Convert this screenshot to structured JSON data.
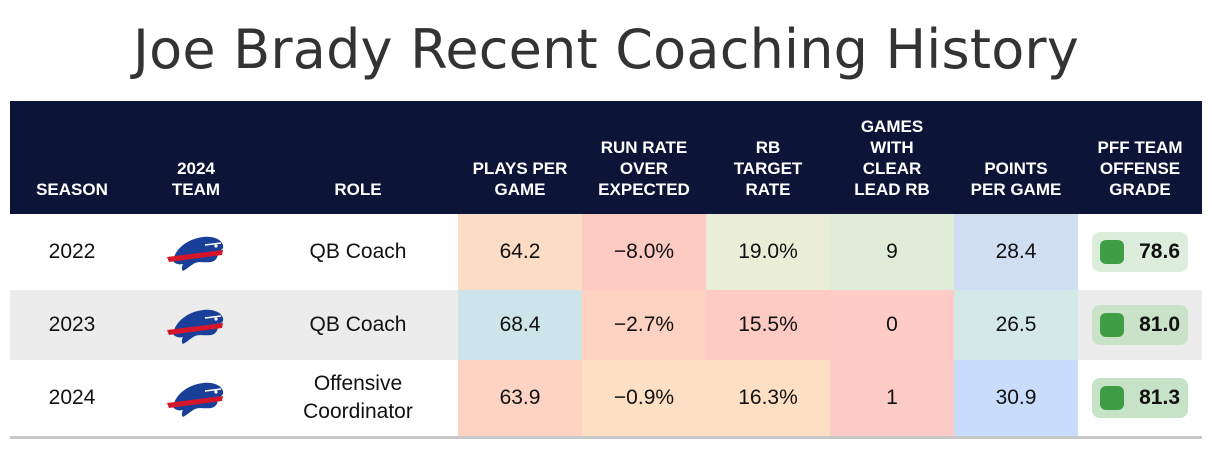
{
  "title": "Joe Brady Recent Coaching History",
  "headers": {
    "season": "SEASON",
    "team": "2024\nTEAM",
    "role": "ROLE",
    "plays_per_game": "PLAYS PER\nGAME",
    "run_rate_over_expected": "RUN RATE\nOVER\nEXPECTED",
    "rb_target_rate": "RB\nTARGET\nRATE",
    "games_with_clear_lead_rb": "GAMES\nWITH\nCLEAR\nLEAD RB",
    "points_per_game": "POINTS\nPER GAME",
    "pff_team_offense_grade": "PFF TEAM\nOFFENSE\nGRADE"
  },
  "team_logo_icon": "buffalo-bills-logo-icon",
  "colors": {
    "header_bg": "#0c1537",
    "grade_dot": "#3f9e45"
  },
  "rows": [
    {
      "season": "2022",
      "role": "QB Coach",
      "plays_per_game": "64.2",
      "run_rate_over_expected": "−8.0%",
      "rb_target_rate": "19.0%",
      "games_with_clear_lead_rb": "9",
      "points_per_game": "28.4",
      "pff_team_offense_grade": "78.6",
      "cell_colors": [
        "#fddcc6",
        "#fdcac4",
        "#eaeed6",
        "#dfedd8",
        "#cfdff1",
        "#dceedb"
      ]
    },
    {
      "season": "2023",
      "role": "QB Coach",
      "plays_per_game": "68.4",
      "run_rate_over_expected": "−2.7%",
      "rb_target_rate": "15.5%",
      "games_with_clear_lead_rb": "0",
      "points_per_game": "26.5",
      "pff_team_offense_grade": "81.0",
      "cell_colors": [
        "#cde4ea",
        "#fdd2c3",
        "#fdcac4",
        "#fecbc6",
        "#d2e9e8",
        "#c9e2c8"
      ]
    },
    {
      "season": "2024",
      "role": "Offensive\nCoordinator",
      "plays_per_game": "63.9",
      "run_rate_over_expected": "−0.9%",
      "rb_target_rate": "16.3%",
      "games_with_clear_lead_rb": "1",
      "points_per_game": "30.9",
      "pff_team_offense_grade": "81.3",
      "cell_colors": [
        "#fdd4c3",
        "#fde0c4",
        "#fde0c4",
        "#fdcbc6",
        "#cadcfb",
        "#c6e2c7"
      ]
    }
  ]
}
